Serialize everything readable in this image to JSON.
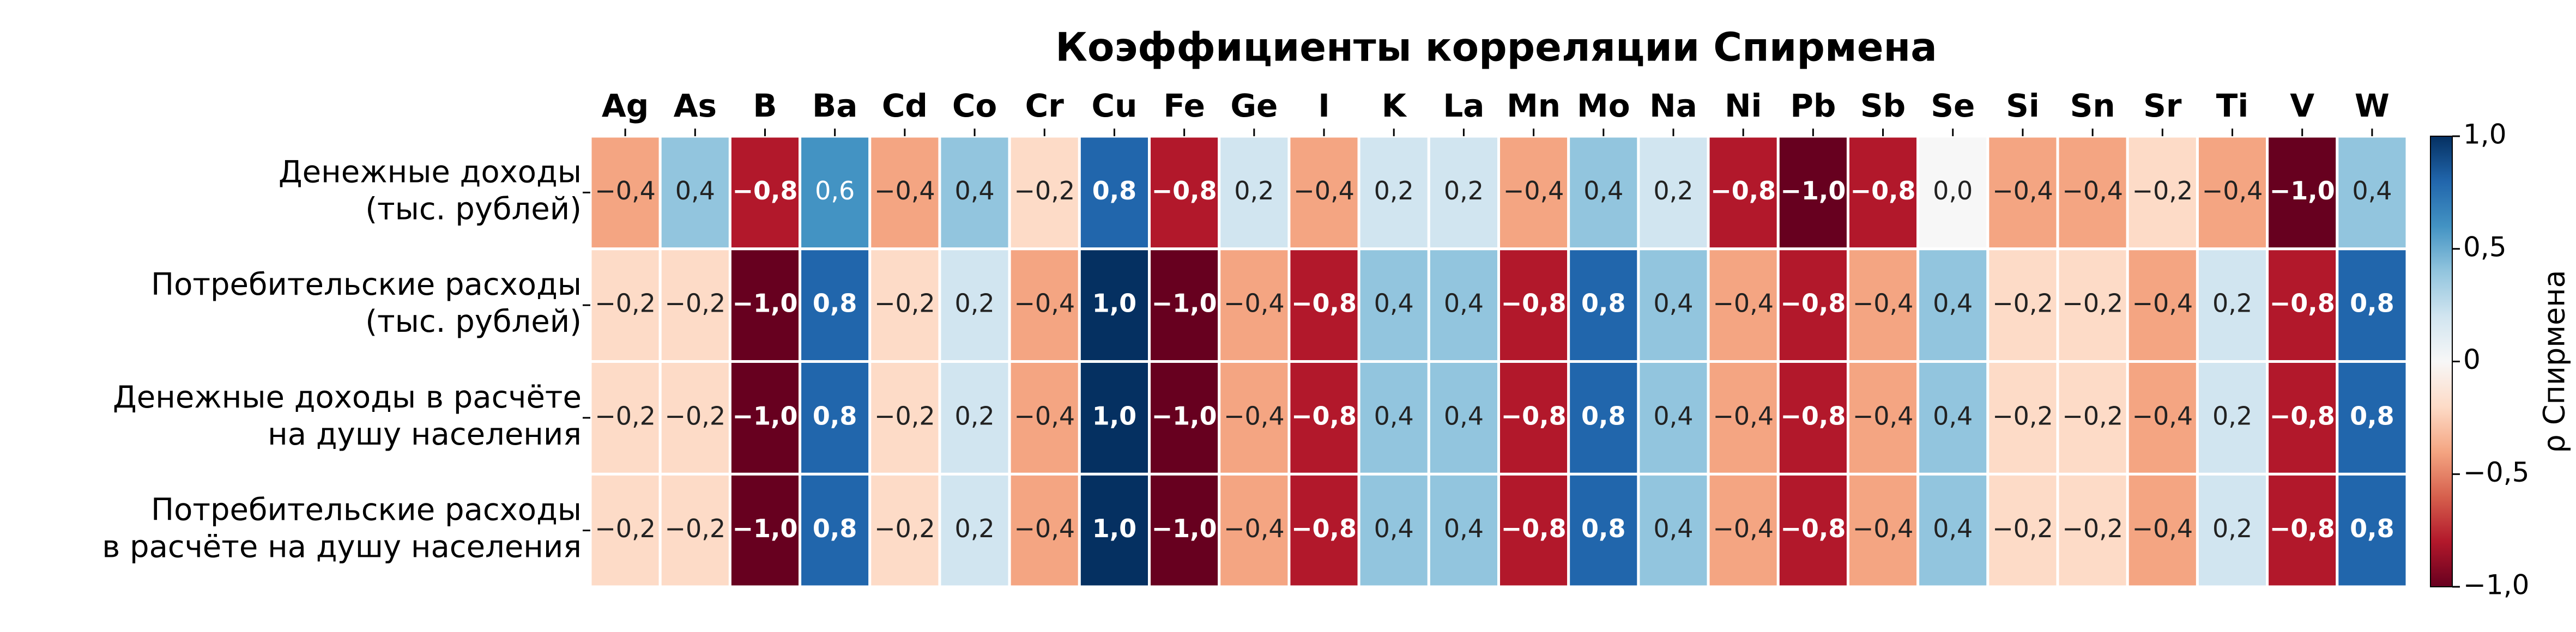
{
  "chart_data": {
    "type": "heatmap",
    "title": "Коэффициенты корреляции Спирмена",
    "x_categories": [
      "Ag",
      "As",
      "B",
      "Ba",
      "Cd",
      "Co",
      "Cr",
      "Cu",
      "Fe",
      "Ge",
      "I",
      "K",
      "La",
      "Mn",
      "Mo",
      "Na",
      "Ni",
      "Pb",
      "Sb",
      "Se",
      "Si",
      "Sn",
      "Sr",
      "Ti",
      "V",
      "W"
    ],
    "y_categories": [
      "Денежные доходы\n(тыс. рублей)",
      "Потребительские расходы\n(тыс. рублей)",
      "Денежные доходы в расчёте\nна душу населения",
      "Потребительские расходы\nв расчёте на душу населения"
    ],
    "values": [
      [
        -0.4,
        0.4,
        -0.8,
        0.6,
        -0.4,
        0.4,
        -0.2,
        0.8,
        -0.8,
        0.2,
        -0.4,
        0.2,
        0.2,
        -0.4,
        0.4,
        0.2,
        -0.8,
        -1.0,
        -0.8,
        0.0,
        -0.4,
        -0.4,
        -0.2,
        -0.4,
        -1.0,
        0.4
      ],
      [
        -0.2,
        -0.2,
        -1.0,
        0.8,
        -0.2,
        0.2,
        -0.4,
        1.0,
        -1.0,
        -0.4,
        -0.8,
        0.4,
        0.4,
        -0.8,
        0.8,
        0.4,
        -0.4,
        -0.8,
        -0.4,
        0.4,
        -0.2,
        -0.2,
        -0.4,
        0.2,
        -0.8,
        0.8
      ],
      [
        -0.2,
        -0.2,
        -1.0,
        0.8,
        -0.2,
        0.2,
        -0.4,
        1.0,
        -1.0,
        -0.4,
        -0.8,
        0.4,
        0.4,
        -0.8,
        0.8,
        0.4,
        -0.4,
        -0.8,
        -0.4,
        0.4,
        -0.2,
        -0.2,
        -0.4,
        0.2,
        -0.8,
        0.8
      ],
      [
        -0.2,
        -0.2,
        -1.0,
        0.8,
        -0.2,
        0.2,
        -0.4,
        1.0,
        -1.0,
        -0.4,
        -0.8,
        0.4,
        0.4,
        -0.8,
        0.8,
        0.4,
        -0.4,
        -0.8,
        -0.4,
        0.4,
        -0.2,
        -0.2,
        -0.4,
        0.2,
        -0.8,
        0.8
      ]
    ],
    "value_labels": [
      [
        "−0,4",
        "0,4",
        "−0,8",
        "0,6",
        "−0,4",
        "0,4",
        "−0,2",
        "0,8",
        "−0,8",
        "0,2",
        "−0,4",
        "0,2",
        "0,2",
        "−0,4",
        "0,4",
        "0,2",
        "−0,8",
        "−1,0",
        "−0,8",
        "0,0",
        "−0,4",
        "−0,4",
        "−0,2",
        "−0,4",
        "−1,0",
        "0,4"
      ],
      [
        "−0,2",
        "−0,2",
        "−1,0",
        "0,8",
        "−0,2",
        "0,2",
        "−0,4",
        "1,0",
        "−1,0",
        "−0,4",
        "−0,8",
        "0,4",
        "0,4",
        "−0,8",
        "0,8",
        "0,4",
        "−0,4",
        "−0,8",
        "−0,4",
        "0,4",
        "−0,2",
        "−0,2",
        "−0,4",
        "0,2",
        "−0,8",
        "0,8"
      ],
      [
        "−0,2",
        "−0,2",
        "−1,0",
        "0,8",
        "−0,2",
        "0,2",
        "−0,4",
        "1,0",
        "−1,0",
        "−0,4",
        "−0,8",
        "0,4",
        "0,4",
        "−0,8",
        "0,8",
        "0,4",
        "−0,4",
        "−0,8",
        "−0,4",
        "0,4",
        "−0,2",
        "−0,2",
        "−0,4",
        "0,2",
        "−0,8",
        "0,8"
      ],
      [
        "−0,2",
        "−0,2",
        "−1,0",
        "0,8",
        "−0,2",
        "0,2",
        "−0,4",
        "1,0",
        "−1,0",
        "−0,4",
        "−0,8",
        "0,4",
        "0,4",
        "−0,8",
        "0,8",
        "0,4",
        "−0,4",
        "−0,8",
        "−0,4",
        "0,4",
        "−0,2",
        "−0,2",
        "−0,4",
        "0,2",
        "−0,8",
        "0,8"
      ]
    ],
    "colormap": "RdBu",
    "clim": [
      -1.0,
      1.0
    ],
    "cticks": [
      {
        "value": 1.0,
        "label": "1,0"
      },
      {
        "value": 0.5,
        "label": "0,5"
      },
      0,
      {
        "value": -0.5,
        "label": "−0,5"
      },
      {
        "value": -1.0,
        "label": "−1,0"
      }
    ],
    "colorbar_label": "ρ Спирмена"
  }
}
